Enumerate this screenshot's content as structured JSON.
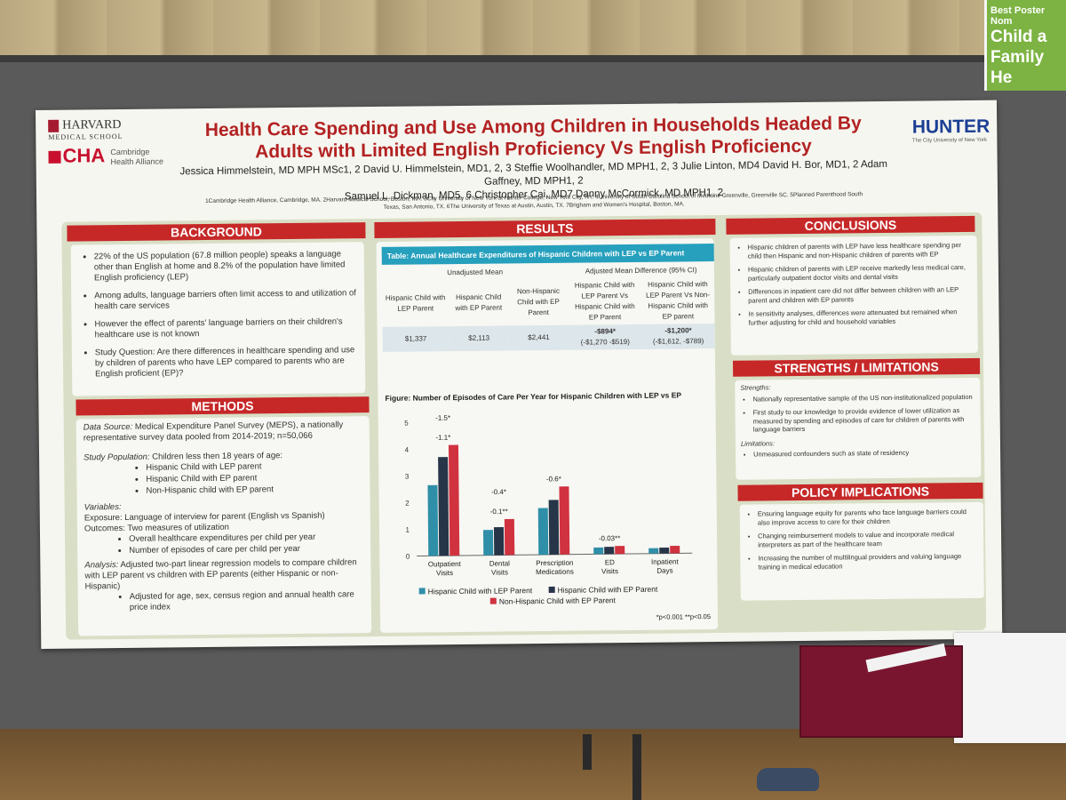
{
  "sign": {
    "line1": "Best Poster Nom",
    "line2": "Child a",
    "line3": "Family He"
  },
  "poster": {
    "logos": {
      "harvard": "HARVARD",
      "harvard_sub": "MEDICAL SCHOOL",
      "cha": "CHA",
      "cha_sub1": "Cambridge",
      "cha_sub2": "Health Alliance",
      "hunter": "HUNTER",
      "hunter_sub": "The City University of New York"
    },
    "title_line1": "Health Care Spending and Use Among Children in Households Headed By",
    "title_line2": "Adults with Limited English Proficiency Vs English Proficiency",
    "authors_line1": "Jessica Himmelstein, MD MPH MSc1, 2 David U. Himmelstein, MD1, 2, 3 Steffie Woolhandler, MD MPH1, 2, 3 Julie Linton, MD4 David H. Bor, MD1, 2 Adam Gaffney, MD MPH1, 2",
    "authors_line2": "Samuel L. Dickman, MD5, 6 Christopher Cai, MD7 Danny McCormick, MD MPH1, 2",
    "affil_line1": "1Cambridge Health Alliance, Cambridge, MA. 2Harvard Medical School, Boston, MA. 3City University of New York at Hunter College, New York City, NY. 4University of South Carolina School of Medicine Greenville, Greenville SC. 5Planned Parenthood South",
    "affil_line2": "Texas, San Antonio, TX. 6The University of Texas at Austin, Austin, TX. 7Brigham and Women's Hospital, Boston, MA.",
    "background": {
      "heading": "BACKGROUND",
      "items": [
        "22% of the US population (67.8 million people) speaks a language other than English at home and 8.2% of the population have limited English proficiency (LEP)",
        "Among adults, language barriers often limit access to and utilization of health care services",
        "However the effect of parents' language barriers on their children's healthcare use is not known",
        "Study Question: Are there differences in healthcare spending and use by children of parents who have LEP compared to parents who are English proficient (EP)?"
      ]
    },
    "methods": {
      "heading": "METHODS",
      "data_source_label": "Data Source:",
      "data_source": "Medical Expenditure Panel Survey (MEPS), a nationally representative survey data pooled from 2014-2019; n=50,066",
      "population_label": "Study Population:",
      "population": "Children less then 18 years of age:",
      "population_items": [
        "Hispanic Child with LEP parent",
        "Hispanic Child with EP parent",
        "Non-Hispanic child with EP parent"
      ],
      "variables_label": "Variables:",
      "exposure": "Exposure: Language of interview for parent (English vs Spanish)",
      "outcomes": "Outcomes: Two measures of utilization",
      "outcome_items": [
        "Overall healthcare expenditures per child per year",
        "Number of episodes of care per child per year"
      ],
      "analysis_label": "Analysis:",
      "analysis": "Adjusted two-part linear regression models to compare children with LEP parent vs children with EP parents (either Hispanic or non-Hispanic)",
      "analysis_items": [
        "Adjusted for age, sex, census region and annual health care price index"
      ]
    },
    "results": {
      "heading": "RESULTS",
      "table_title": "Table: Annual Healthcare Expenditures of Hispanic Children with LEP vs EP Parent",
      "group1": "Unadjusted Mean",
      "group2": "Adjusted Mean Difference (95% CI)",
      "col_headers": [
        "Hispanic Child with LEP Parent",
        "Hispanic Child with EP Parent",
        "Non-Hispanic Child with EP Parent",
        "Hispanic Child with LEP Parent Vs Hispanic Child with EP Parent",
        "Hispanic Child with LEP Parent Vs Non-Hispanic Child with EP parent"
      ],
      "values": [
        "$1,337",
        "$2,113",
        "$2,441",
        "-$894*",
        "-$1,200*"
      ],
      "ci": [
        "",
        "",
        "",
        "(-$1,270 -$519)",
        "(-$1,612, -$789)"
      ],
      "figure_title": "Figure: Number of Episodes of Care Per Year for Hispanic Children with LEP vs EP",
      "footnote": "*p<0.001 **p<0.05"
    },
    "conclusions": {
      "heading": "CONCLUSIONS",
      "items": [
        "Hispanic children of parents with LEP have less healthcare spending per child then Hispanic and non-Hispanic children of parents with EP",
        "Hispanic children of parents with LEP receive markedly less medical care, particularly outpatient doctor visits and dental visits",
        "Differences in inpatient care did not differ between children with an LEP parent and children with EP parents",
        "In sensitivity analyses, differences were attenuated but remained when further adjusting for child and household variables"
      ]
    },
    "strengths": {
      "heading": "STRENGTHS / LIMITATIONS",
      "strengths_label": "Strengths:",
      "strengths_items": [
        "Nationally representative sample of the US non-institutionalized population",
        "First study to our knowledge to provide evidence of lower utilization as measured by spending and episodes of care for children of parents with language barriers"
      ],
      "limitations_label": "Limitations:",
      "limitations_items": [
        "Unmeasured confounders such as state of residency"
      ]
    },
    "policy": {
      "heading": "POLICY IMPLICATIONS",
      "items": [
        "Ensuring language equity for parents who face language barriers could also improve access to care for their children",
        "Changing reimbursement models to value and incorporate medical interpreters as part of the healthcare team",
        "Increasing the number of multilingual providers and valuing language training in medical education"
      ]
    }
  },
  "chart_data": {
    "type": "bar",
    "title": "Figure: Number of Episodes of Care Per Year for Hispanic Children with LEP vs EP",
    "categories": [
      "Outpatient Visits",
      "Dental Visits",
      "Prescription Medications",
      "ED Visits",
      "Inpatient Days"
    ],
    "series": [
      {
        "name": "Hispanic Child with LEP Parent",
        "color": "#2f8fa8",
        "values": [
          2.65,
          0.95,
          1.75,
          0.25,
          0.2
        ]
      },
      {
        "name": "Hispanic Child with EP Parent",
        "color": "#263548",
        "values": [
          3.7,
          1.05,
          2.05,
          0.27,
          0.22
        ]
      },
      {
        "name": "Non-Hispanic Child with EP Parent",
        "color": "#d0323f",
        "values": [
          4.15,
          1.35,
          2.55,
          0.3,
          0.28
        ]
      }
    ],
    "annotations": [
      {
        "category": "Outpatient Visits",
        "labels": [
          "-1.1*",
          "-1.5*"
        ]
      },
      {
        "category": "Dental Visits",
        "labels": [
          "-0.1**",
          "-0.4*"
        ]
      },
      {
        "category": "Prescription Medications",
        "labels": [
          "-0.6*"
        ]
      },
      {
        "category": "ED Visits",
        "labels": [
          "-0.03**"
        ]
      }
    ],
    "ylim": [
      0,
      5
    ],
    "yticks": [
      0,
      1,
      2,
      3,
      4,
      5
    ],
    "legend": "bottom",
    "footnote": "*p<0.001 **p<0.05"
  }
}
